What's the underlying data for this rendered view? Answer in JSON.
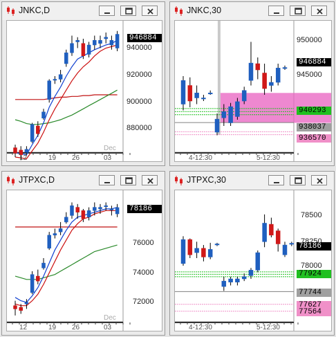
{
  "windows": [
    {
      "id": "jnkc-d",
      "title": "JNKC,D",
      "ylabels": [
        "940000",
        "920000",
        "900000",
        "880000"
      ],
      "price_tag": "946884",
      "price_tags": [],
      "xlabels": [
        "12",
        "19",
        "26",
        "Dec",
        "03"
      ]
    },
    {
      "id": "jnkc-30",
      "title": "JNKC,30",
      "ylabels": [
        "950000",
        "945000"
      ],
      "price_tag": "946884",
      "price_tags": [
        "940293",
        "938037",
        "936570"
      ],
      "xlabels": [
        "4-12:30",
        "5-12:30"
      ]
    },
    {
      "id": "jtpxc-d",
      "title": "JTPXC,D",
      "ylabels": [
        "76000",
        "74000",
        "72000"
      ],
      "price_tag": "78186",
      "price_tags": [],
      "xlabels": [
        "12",
        "19",
        "26",
        "Dec",
        "03"
      ]
    },
    {
      "id": "jtpxc-30",
      "title": "JTPXC,30",
      "ylabels": [
        "78500",
        "78250",
        "78000"
      ],
      "price_tag": "78186",
      "price_tags": [
        "77924",
        "77744",
        "77627",
        "77564"
      ],
      "xlabels": [
        "4-12:30",
        "5-12:30"
      ]
    }
  ],
  "colors": {
    "bull": "#1f5fbf",
    "bear": "#d01818",
    "ma_red": "#cc1010",
    "ma_blue": "#1040d0",
    "ma_green": "#2a8a2a",
    "ma_flat": "#c01010",
    "tag_black": "#000000",
    "tag_green": "#20c020",
    "tag_gray": "#a0a0a0",
    "tag_pink": "#f090c8",
    "zone_pink": "#e860c0"
  },
  "icons": [
    "chart-window-icon",
    "minimize-icon",
    "restore-icon",
    "close-icon"
  ],
  "chart_data": [
    {
      "type": "candlestick",
      "title": "JNKC,D",
      "ylim": [
        872000,
        952000
      ],
      "x": [
        "12",
        "19",
        "26",
        "Dec",
        "03"
      ],
      "candles": [
        [
          0,
          874000,
          870500,
          868000,
          876000
        ],
        [
          1,
          872500,
          869500,
          866000,
          875000
        ],
        [
          2,
          871000,
          873000,
          869000,
          875000
        ],
        [
          3,
          878000,
          889000,
          877000,
          890000
        ],
        [
          4,
          888000,
          883000,
          881000,
          891000
        ],
        [
          5,
          893000,
          897000,
          892000,
          899000
        ],
        [
          6,
          905000,
          917000,
          903000,
          918000
        ],
        [
          7,
          918000,
          918000,
          915000,
          920000
        ],
        [
          8,
          918000,
          921000,
          916000,
          924000
        ],
        [
          9,
          928000,
          935000,
          926000,
          937000
        ],
        [
          10,
          935000,
          941000,
          933000,
          946000
        ],
        [
          11,
          942000,
          943000,
          938000,
          945000
        ],
        [
          12,
          941000,
          933000,
          931000,
          944000
        ],
        [
          13,
          934000,
          940000,
          932000,
          942000
        ],
        [
          14,
          940000,
          943000,
          937000,
          946000
        ],
        [
          15,
          941000,
          943000,
          938000,
          946000
        ],
        [
          16,
          944000,
          945000,
          941000,
          948000
        ],
        [
          17,
          940000,
          943000,
          937000,
          946000
        ],
        [
          18,
          938000,
          946884,
          936000,
          949000
        ]
      ],
      "ma_red": [
        868000,
        867500,
        867000,
        872000,
        877000,
        884000,
        892000,
        899000,
        905000,
        911000,
        917000,
        922000,
        926000,
        929000,
        933000,
        936000,
        938000,
        939000,
        940000
      ],
      "ma_blue": [
        871000,
        870000,
        869500,
        876000,
        882000,
        890000,
        900000,
        907000,
        913000,
        920000,
        926000,
        931000,
        933000,
        935000,
        937000,
        938500,
        940000,
        941000,
        943000
      ],
      "ma_green": [
        892000,
        891000,
        889500,
        889000,
        889000,
        889500,
        890000,
        891000,
        892000,
        893500,
        895000,
        897000,
        899000,
        901000,
        903000,
        905000,
        907000,
        909000,
        911000
      ],
      "ma_flat": [
        905000,
        905000,
        905000,
        905000,
        905000,
        905000,
        905500,
        906000,
        906500,
        906500,
        907000,
        907000,
        907500,
        907500,
        908000,
        908000,
        908000,
        908000,
        908000
      ]
    },
    {
      "type": "candlestick",
      "title": "JNKC,30",
      "ylim": [
        933500,
        953500
      ],
      "x": [
        "4-12:30",
        "5-12:30"
      ],
      "candles": [
        [
          0,
          941000,
          944800,
          940000,
          945500
        ],
        [
          1,
          944000,
          941500,
          940500,
          945300
        ],
        [
          2,
          942000,
          942800,
          941000,
          944000
        ],
        [
          3,
          942000,
          942000,
          941500,
          942500
        ],
        [
          4,
          942800,
          942800,
          942500,
          943200
        ],
        [
          5,
          936500,
          938600,
          936000,
          939500
        ],
        [
          6,
          938800,
          939800,
          937500,
          941000
        ],
        [
          7,
          938000,
          940600,
          937500,
          941200
        ],
        [
          8,
          939000,
          941400,
          938500,
          942000
        ],
        [
          9,
          941500,
          943200,
          941000,
          943800
        ],
        [
          10,
          944800,
          947600,
          944000,
          951000
        ],
        [
          11,
          947500,
          946500,
          945000,
          948500
        ],
        [
          12,
          946000,
          943500,
          942500,
          947500
        ],
        [
          13,
          944000,
          944500,
          943000,
          945500
        ],
        [
          14,
          944500,
          946800,
          944000,
          947500
        ],
        [
          15,
          946800,
          946884,
          946500,
          947200
        ]
      ],
      "levels": [
        {
          "value": 940293,
          "color": "green"
        },
        {
          "value": 939800,
          "color": "green"
        },
        {
          "value": 939300,
          "color": "green"
        },
        {
          "value": 938037,
          "color": "gray"
        },
        {
          "value": 936570,
          "color": "pink"
        },
        {
          "value": 936100,
          "color": "pink"
        }
      ],
      "zones": [
        {
          "y_from": 938000,
          "y_to": 942800,
          "x_from": 5.5,
          "x_to": 16
        }
      ]
    },
    {
      "type": "candlestick",
      "title": "JTPXC,D",
      "ylim": [
        71300,
        78900
      ],
      "x": [
        "12",
        "19",
        "26",
        "Dec",
        "03"
      ],
      "candles": [
        [
          0,
          72200,
          72000,
          71600,
          72500
        ],
        [
          1,
          72100,
          71900,
          71700,
          72300
        ],
        [
          2,
          72300,
          72400,
          72000,
          72600
        ],
        [
          3,
          73000,
          74100,
          72900,
          74300
        ],
        [
          4,
          74000,
          73700,
          73500,
          74400
        ],
        [
          5,
          74500,
          74800,
          74400,
          75100
        ],
        [
          6,
          75700,
          76500,
          75600,
          76700
        ],
        [
          7,
          76500,
          76600,
          76300,
          76900
        ],
        [
          8,
          76700,
          76900,
          76500,
          77300
        ],
        [
          9,
          77300,
          77600,
          77200,
          77900
        ],
        [
          10,
          77700,
          78300,
          77500,
          78500
        ],
        [
          11,
          78200,
          77900,
          77500,
          78400
        ],
        [
          12,
          78000,
          77500,
          77300,
          78100
        ],
        [
          13,
          77600,
          78000,
          77400,
          78200
        ],
        [
          14,
          78000,
          78200,
          77700,
          78500
        ],
        [
          15,
          78100,
          78200,
          77800,
          78400
        ],
        [
          16,
          78300,
          78300,
          78000,
          78500
        ],
        [
          17,
          78100,
          78100,
          77700,
          78300
        ],
        [
          18,
          77800,
          78186,
          77600,
          78400
        ]
      ],
      "ma_red": [
        72300,
        72200,
        72200,
        72500,
        72900,
        73500,
        74200,
        74900,
        75600,
        76200,
        76800,
        77200,
        77500,
        77600,
        77800,
        77900,
        78000,
        78000,
        78000
      ],
      "ma_blue": [
        72700,
        72500,
        72400,
        72800,
        73300,
        74000,
        74800,
        75600,
        76200,
        76800,
        77300,
        77600,
        77700,
        77800,
        77900,
        78000,
        78100,
        78100,
        78200
      ],
      "ma_green": [
        74000,
        73900,
        73800,
        73800,
        73800,
        73900,
        74000,
        74100,
        74300,
        74500,
        74700,
        74900,
        75100,
        75300,
        75500,
        75600,
        75700,
        75800,
        75900
      ],
      "ma_flat": [
        77000,
        77000,
        77000,
        77000,
        77000,
        77000,
        77000,
        77000,
        77000,
        77000,
        77000,
        77000,
        77000,
        77000,
        77000,
        77000,
        77000,
        77000,
        77000
      ]
    },
    {
      "type": "candlestick",
      "title": "JTPXC,30",
      "ylim": [
        77480,
        78620
      ],
      "x": [
        "4-12:30",
        "5-12:30"
      ],
      "candles": [
        [
          0,
          78000,
          78220,
          77980,
          78250
        ],
        [
          1,
          78220,
          78080,
          78050,
          78230
        ],
        [
          2,
          78100,
          78140,
          78050,
          78200
        ],
        [
          3,
          78140,
          78060,
          78020,
          78170
        ],
        [
          4,
          78060,
          78130,
          78040,
          78190
        ],
        [
          5,
          78180,
          78180,
          78160,
          78190
        ],
        [
          6,
          77790,
          77840,
          77750,
          77880
        ],
        [
          7,
          77830,
          77860,
          77800,
          77880
        ],
        [
          8,
          77830,
          77860,
          77800,
          77880
        ],
        [
          9,
          77860,
          77880,
          77840,
          77910
        ],
        [
          10,
          77890,
          77940,
          77860,
          77960
        ],
        [
          11,
          77940,
          78100,
          77920,
          78120
        ],
        [
          12,
          78200,
          78370,
          78150,
          78450
        ],
        [
          13,
          78360,
          78260,
          78240,
          78420
        ],
        [
          14,
          78300,
          78180,
          78110,
          78320
        ],
        [
          15,
          78080,
          78170,
          78060,
          78200
        ],
        [
          16,
          78180,
          78186,
          78160,
          78200
        ]
      ],
      "levels": [
        {
          "value": 77924,
          "color": "green"
        },
        {
          "value": 77902,
          "color": "green"
        },
        {
          "value": 77880,
          "color": "green"
        },
        {
          "value": 77744,
          "color": "gray"
        },
        {
          "value": 77627,
          "color": "pink"
        },
        {
          "value": 77564,
          "color": "pink"
        }
      ],
      "zones": []
    }
  ]
}
